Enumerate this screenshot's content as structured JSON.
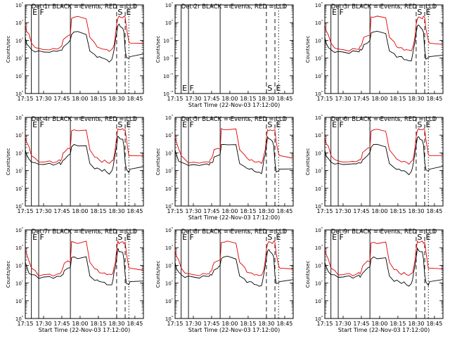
{
  "chart_data": {
    "type": "line",
    "layout": "3x3 grid",
    "x_tick_labels": [
      "17:15",
      "17:30",
      "17:45",
      "18:00",
      "18:15",
      "18:30",
      "18:45"
    ],
    "x_ticks_min": [
      15,
      30,
      45,
      60,
      75,
      90,
      105
    ],
    "x_range_min": [
      15,
      112
    ],
    "y_scale": "log",
    "y_tick_labels": [
      "10⁰",
      "10¹",
      "10²",
      "10³",
      "10⁴",
      "10⁵"
    ],
    "y_range": [
      1,
      100000
    ],
    "xlabel": "Start Time (22-Nov-03 17:12:00)",
    "ylabel": "Counts/sec",
    "legend": "BLACK = Events, RED = LLD",
    "series_names": [
      "Events",
      "LLD"
    ],
    "series_colors": {
      "Events": "#000000",
      "LLD": "#e00000"
    },
    "vertical_markers": [
      {
        "x": 20,
        "style": "solid",
        "label": "E"
      },
      {
        "x": 26,
        "style": "solid",
        "label": "F"
      },
      {
        "x": 52,
        "style": "solid",
        "label": ""
      },
      {
        "x": 90,
        "style": "dashed",
        "label": "S"
      },
      {
        "x": 97,
        "style": "dashed",
        "label": "E"
      },
      {
        "x": 100,
        "style": "dotted",
        "label": ""
      }
    ],
    "reference_series": {
      "x_min": [
        15,
        16,
        18,
        20,
        23,
        26,
        30,
        35,
        38,
        41,
        43,
        44,
        45,
        46,
        47,
        50,
        52,
        53,
        55,
        58,
        65,
        68,
        72,
        74,
        76,
        78,
        80,
        82,
        84,
        86,
        87,
        88,
        89,
        90,
        91,
        92,
        93,
        95,
        96,
        97,
        98,
        100,
        101,
        112
      ],
      "lld_counts": [
        8000,
        4000,
        2000,
        700,
        450,
        300,
        300,
        300,
        300,
        320,
        350,
        400,
        500,
        900,
        1300,
        1800,
        1800,
        20000,
        20000,
        20000,
        20000,
        1500,
        700,
        500,
        380,
        350,
        340,
        300,
        280,
        300,
        380,
        700,
        1800,
        8000,
        20000,
        20000,
        20000,
        20000,
        20000,
        20000,
        5000,
        800,
        700,
        600
      ],
      "event_counts": [
        1500,
        800,
        400,
        300,
        250,
        220,
        220,
        220,
        220,
        240,
        250,
        260,
        280,
        350,
        500,
        700,
        900,
        2500,
        3000,
        2800,
        2600,
        250,
        150,
        130,
        120,
        110,
        100,
        80,
        70,
        80,
        150,
        400,
        900,
        2500,
        8000,
        7000,
        6000,
        5000,
        2500,
        300,
        100,
        90,
        120,
        150
      ]
    },
    "panels": [
      {
        "id": "det1r",
        "title": "Det 1r BLACK = Events, RED = LLD",
        "xlabel": "",
        "has_data": true,
        "show_ylabel": true
      },
      {
        "id": "det2r",
        "title": "Det 2r BLACK = Events, RED = LLD",
        "xlabel": "Start Time (22-Nov-03 17:12:00)",
        "has_data": false,
        "show_ylabel": true,
        "y_tick_labels": [
          "10⁻⁸",
          "10⁻⁶",
          "10⁻⁴",
          "10⁻²",
          "10⁰",
          "10²"
        ]
      },
      {
        "id": "det3r",
        "title": "Det 3r BLACK = Events, RED = LLD",
        "xlabel": "",
        "has_data": true,
        "show_ylabel": true
      },
      {
        "id": "det4r",
        "title": "Det 4r BLACK = Events, RED = LLD",
        "xlabel": "",
        "has_data": true,
        "show_ylabel": true
      },
      {
        "id": "det5r",
        "title": "Det 5r BLACK = Events, RED = LLD",
        "xlabel": "Start Time (22-Nov-03 17:12:00)",
        "has_data": true,
        "show_ylabel": true
      },
      {
        "id": "det6r",
        "title": "Det 6r BLACK = Events, RED = LLD",
        "xlabel": "",
        "has_data": true,
        "show_ylabel": true
      },
      {
        "id": "det7r",
        "title": "Det 7r BLACK = Events, RED = LLD",
        "xlabel": "Start Time (22-Nov-03 17:12:00)",
        "has_data": true,
        "show_ylabel": true
      },
      {
        "id": "det8r",
        "title": "Det 8r BLACK = Events, RED = LLD",
        "xlabel": "Start Time (22-Nov-03 17:12:00)",
        "has_data": true,
        "show_ylabel": true
      },
      {
        "id": "det9r",
        "title": "Det 9r BLACK = Events, RED = LLD",
        "xlabel": "Start Time (22-Nov-03 17:12:00)",
        "has_data": true,
        "show_ylabel": true
      }
    ]
  }
}
